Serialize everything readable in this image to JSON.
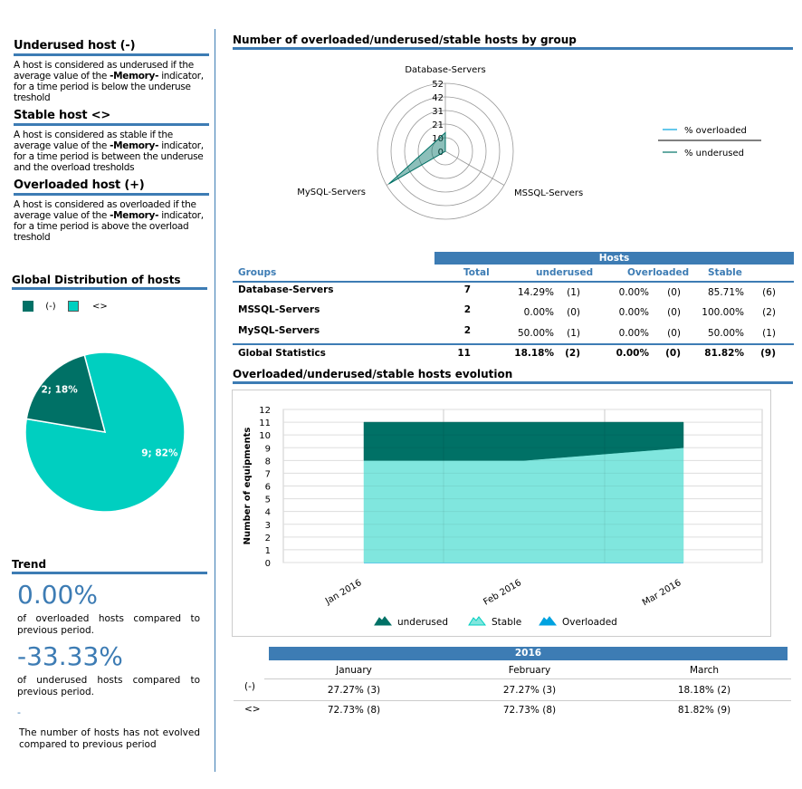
{
  "definitions": [
    {
      "title": "Underused host (-)",
      "pre": "A host is considered as underused if the average value of the ",
      "bold": "-Memory-",
      "post": " indicator, for a time period is below the underuse treshold"
    },
    {
      "title": "Stable host <>",
      "pre": "A host is considered as stable if the average value of the ",
      "bold": "-Memory-",
      "post": " indicator, for a time period is between the underuse and the overload tresholds"
    },
    {
      "title": "Overloaded host (+)",
      "pre": "A host is considered as overloaded if the average value of the ",
      "bold": "-Memory-",
      "post": " indicator, for a time period is above the overload treshold"
    }
  ],
  "colors": {
    "accent": "#3d7cb4",
    "underused": "#007166",
    "stable": "#00cfc0",
    "stable_area": "#80e6de",
    "overloaded": "#00a2e0"
  },
  "chart_data": [
    {
      "type": "pie",
      "title": "Global Distribution of hosts",
      "legend": [
        "(-)",
        "<>"
      ],
      "values": [
        2,
        9
      ],
      "labels": [
        "2; 18%",
        "9; 82%"
      ],
      "colors": [
        "#007166",
        "#00cfc0"
      ]
    },
    {
      "type": "radar",
      "title": "Number of overloaded/underused/stable hosts by group",
      "categories": [
        "Database-Servers",
        "MSSQL-Servers",
        "MySQL-Servers"
      ],
      "ticks": [
        "0",
        "10",
        "21",
        "31",
        "42",
        "52"
      ],
      "rmax": 52,
      "series": [
        {
          "name": "% overloaded",
          "values": [
            0,
            0,
            0
          ],
          "color": "#00a2e0"
        },
        {
          "name": "% underused",
          "values": [
            14.29,
            0,
            50
          ],
          "color": "#007166"
        }
      ],
      "legend_position": "right"
    },
    {
      "type": "area",
      "stacked": true,
      "title": "Overloaded/underused/stable hosts evolution",
      "ylabel": "Number of equipments",
      "ylim": [
        0,
        12
      ],
      "yticks": [
        "0",
        "1",
        "2",
        "3",
        "4",
        "5",
        "6",
        "7",
        "8",
        "9",
        "10",
        "11",
        "12"
      ],
      "categories": [
        "Jan 2016",
        "Feb 2016",
        "Mar 2016"
      ],
      "series": [
        {
          "name": "Overloaded",
          "values": [
            0,
            0,
            0
          ],
          "color": "#00a2e0"
        },
        {
          "name": "Stable",
          "values": [
            8,
            8,
            9
          ],
          "color": "#80e6de"
        },
        {
          "name": "underused",
          "values": [
            3,
            3,
            2
          ],
          "color": "#007166"
        }
      ],
      "legend": [
        "underused",
        "Stable",
        "Overloaded"
      ],
      "grid": true,
      "legend_position": "bottom"
    }
  ],
  "groups_table": {
    "super_header": "Hosts",
    "headers": [
      "Groups",
      "Total",
      "underused",
      "Overloaded",
      "Stable"
    ],
    "rows": [
      [
        "Database-Servers",
        "7",
        "14.29%",
        "(1)",
        "0.00%",
        "(0)",
        "85.71%",
        "(6)"
      ],
      [
        "MSSQL-Servers",
        "2",
        "0.00%",
        "(0)",
        "0.00%",
        "(0)",
        "100.00%",
        "(2)"
      ],
      [
        "MySQL-Servers",
        "2",
        "50.00%",
        "(1)",
        "0.00%",
        "(0)",
        "50.00%",
        "(1)"
      ]
    ],
    "total": [
      "Global Statistics",
      "11",
      "18.18%",
      "(2)",
      "0.00%",
      "(0)",
      "81.82%",
      "(9)"
    ]
  },
  "evolution_table": {
    "year": "2016",
    "months": [
      "January",
      "February",
      "March"
    ],
    "rows": [
      {
        "label": "(-)",
        "values": [
          "27.27% (3)",
          "27.27% (3)",
          "18.18% (2)"
        ]
      },
      {
        "label": "<>",
        "values": [
          "72.73% (8)",
          "72.73% (8)",
          "81.82% (9)"
        ]
      }
    ]
  },
  "trend": {
    "title": "Trend",
    "overloaded_value": "0.00%",
    "overloaded_text": "of overloaded hosts compared to previous period.",
    "underused_value": "-33.33%",
    "underused_text": "of underused hosts compared to previous period.",
    "stable_value": "-",
    "stable_text": "The number of hosts has not evolved compared to previous period"
  }
}
